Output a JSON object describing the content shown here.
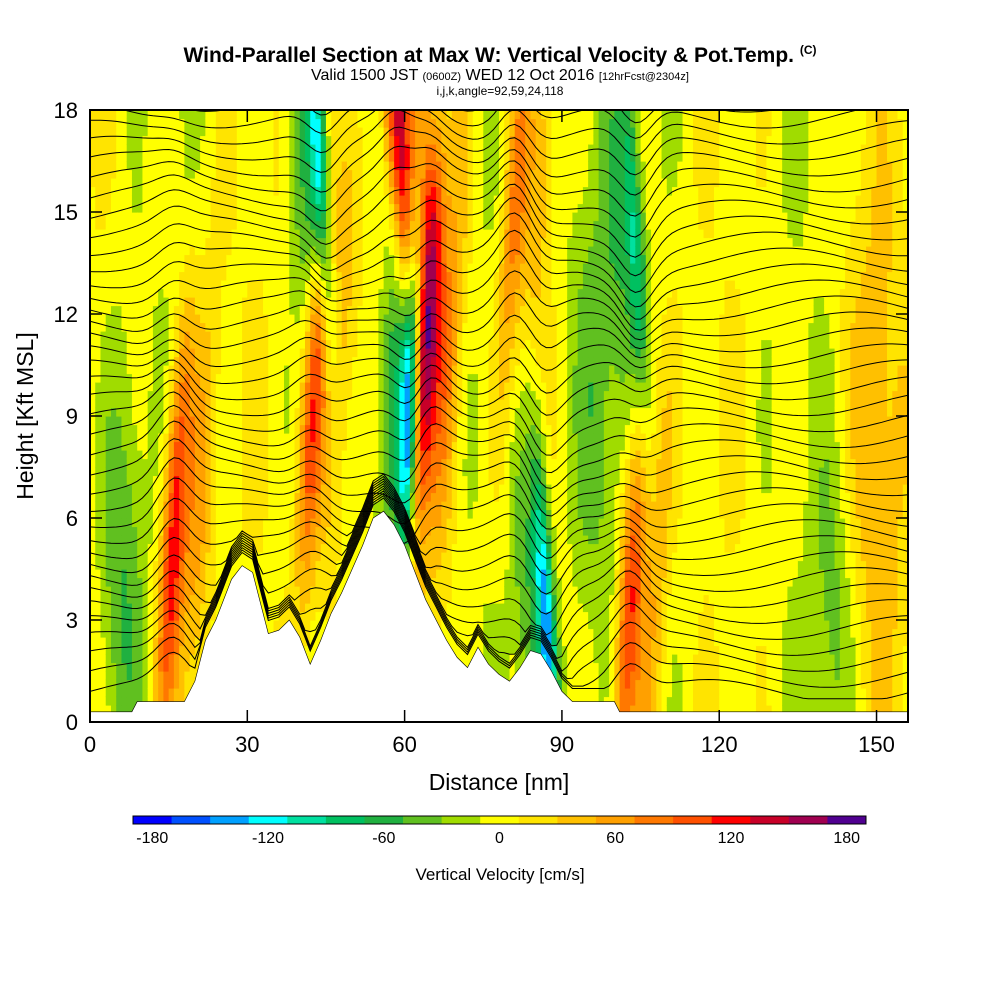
{
  "title": {
    "main": "Wind-Parallel Section at Max W: Vertical Velocity & Pot.Temp.",
    "copyright": "(C)",
    "valid_prefix": "Valid 1500 JST",
    "valid_utc": "(0600Z)",
    "valid_date": "WED 12 Oct 2016",
    "forecast": "[12hrFcst@2304z]",
    "section_params": "i,j,k,angle=92,59,24,118"
  },
  "colors": {
    "bins": [
      "#0000ff",
      "#0050ff",
      "#00a0ff",
      "#00ffff",
      "#00e0a0",
      "#00c060",
      "#20b040",
      "#60c020",
      "#a0dc00",
      "#ffff00",
      "#ffe400",
      "#ffc000",
      "#ffa000",
      "#ff7800",
      "#ff5000",
      "#ff0000",
      "#c80028",
      "#a00050",
      "#500090"
    ],
    "terrain": "#ffffff",
    "contour": "#000000"
  },
  "chart_data": {
    "type": "heatmap",
    "title": "Wind-Parallel Section at Max W: Vertical Velocity & Pot.Temp.",
    "xlabel": "Distance [nm]",
    "ylabel": "Height [Kft MSL]",
    "xlim": [
      0,
      156
    ],
    "ylim": [
      0,
      18
    ],
    "x_ticks": [
      0,
      30,
      60,
      90,
      120,
      150
    ],
    "y_ticks": [
      0,
      3,
      6,
      9,
      12,
      15,
      18
    ],
    "colorbar": {
      "title": "Vertical Velocity [cm/s]",
      "min": -190,
      "max": 190,
      "step": 20,
      "tick_labels": [
        "-180",
        "-120",
        "-60",
        "0",
        "60",
        "120",
        "180"
      ],
      "tick_values": [
        -180,
        -120,
        -60,
        0,
        60,
        120,
        180
      ]
    },
    "terrain_profile": [
      [
        0,
        0.3
      ],
      [
        8,
        0.3
      ],
      [
        9,
        0.6
      ],
      [
        18,
        0.6
      ],
      [
        20,
        1.2
      ],
      [
        22,
        2.4
      ],
      [
        24,
        3.0
      ],
      [
        27,
        4.2
      ],
      [
        29,
        4.6
      ],
      [
        31,
        4.4
      ],
      [
        32,
        3.8
      ],
      [
        34,
        2.6
      ],
      [
        36,
        2.7
      ],
      [
        38,
        3.0
      ],
      [
        40,
        2.5
      ],
      [
        42,
        1.7
      ],
      [
        44,
        2.4
      ],
      [
        46,
        3.2
      ],
      [
        48,
        3.8
      ],
      [
        50,
        4.5
      ],
      [
        52,
        5.2
      ],
      [
        54,
        6.0
      ],
      [
        56,
        6.2
      ],
      [
        58,
        5.8
      ],
      [
        60,
        5.2
      ],
      [
        62,
        4.4
      ],
      [
        64,
        3.6
      ],
      [
        66,
        3.0
      ],
      [
        68,
        2.4
      ],
      [
        70,
        1.9
      ],
      [
        72,
        1.6
      ],
      [
        74,
        2.2
      ],
      [
        76,
        1.7
      ],
      [
        78,
        1.4
      ],
      [
        80,
        1.2
      ],
      [
        82,
        1.6
      ],
      [
        84,
        2.1
      ],
      [
        86,
        2.0
      ],
      [
        88,
        1.5
      ],
      [
        90,
        0.9
      ],
      [
        92,
        0.6
      ],
      [
        100,
        0.6
      ],
      [
        101,
        0.3
      ],
      [
        156,
        0.3
      ]
    ],
    "updraft_features": [
      {
        "center_x": 16,
        "peak_height": 5.5,
        "max_w": 130
      },
      {
        "center_x": 43,
        "peak_height": 10.0,
        "max_w": 120
      },
      {
        "center_x": 59,
        "peak_height": 17.0,
        "max_w": 130
      },
      {
        "center_x": 64,
        "peak_height": 11.0,
        "max_w": 130
      },
      {
        "center_x": 103,
        "peak_height": 3.5,
        "max_w": 120
      },
      {
        "center_x": 81,
        "peak_height": 15.0,
        "max_w": 80
      }
    ],
    "downdraft_features": [
      {
        "center_x": 61,
        "peak_height": 9.5,
        "min_w": -180
      },
      {
        "center_x": 44,
        "peak_height": 15.5,
        "min_w": -120
      },
      {
        "center_x": 87,
        "peak_height": 2.8,
        "min_w": -140
      },
      {
        "center_x": 104,
        "peak_height": 14.0,
        "min_w": -80
      }
    ]
  }
}
